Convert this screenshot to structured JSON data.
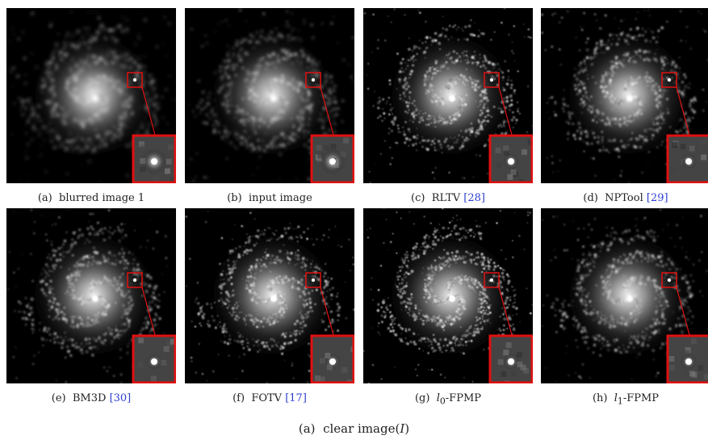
{
  "panels": [
    {
      "label": "(a)",
      "name": "blurred image 1",
      "cite": "",
      "sub": "",
      "style": "blurred"
    },
    {
      "label": "(b)",
      "name": "input image",
      "cite": "",
      "sub": "",
      "style": "input"
    },
    {
      "label": "(c)",
      "name": "RLTV",
      "cite": "[28]",
      "sub": "",
      "style": "sharp"
    },
    {
      "label": "(d)",
      "name": "NPTool",
      "cite": "[29]",
      "sub": "",
      "style": "smooth"
    },
    {
      "label": "(e)",
      "name": "BM3D",
      "cite": "[30]",
      "sub": "",
      "style": "smooth"
    },
    {
      "label": "(f)",
      "name": "FOTV",
      "cite": "[17]",
      "sub": "",
      "style": "sharp"
    },
    {
      "label": "(g)",
      "name": "-FPMP",
      "prefix": "l",
      "sub": "0",
      "cite": "",
      "style": "noisy"
    },
    {
      "label": "(h)",
      "name": "-FPMP",
      "prefix": "l",
      "sub": "1",
      "cite": "",
      "style": "smooth"
    }
  ],
  "main_caption": {
    "label": "(a)",
    "text": "clear image(",
    "var": "I",
    "close": ")"
  },
  "colors": {
    "zoom_box": "#e01010",
    "citation": "#2a3fd1",
    "background": "#000000"
  }
}
